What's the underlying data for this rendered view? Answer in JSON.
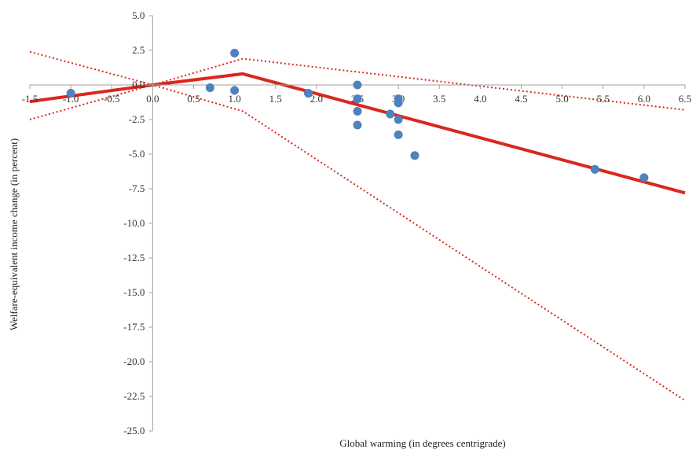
{
  "chart_data": {
    "type": "scatter",
    "xlabel": "Global warming (in degrees centrigrade)",
    "ylabel": "Welfare-equivalent income change (in percent)",
    "xlim": [
      -1.5,
      6.5
    ],
    "ylim": [
      -25.0,
      5.0
    ],
    "x_ticks": [
      "-1.5",
      "-1.0",
      "-0.5",
      "0.0",
      "0.5",
      "1.0",
      "1.5",
      "2.0",
      "2.5",
      "3.0",
      "3.5",
      "4.0",
      "4.5",
      "5.0",
      "5.5",
      "6.0",
      "6.5"
    ],
    "y_ticks": [
      "5.0",
      "2.5",
      "0.0",
      "-2.5",
      "-5.0",
      "-7.5",
      "-10.0",
      "-12.5",
      "-15.0",
      "-17.5",
      "-20.0",
      "-22.5",
      "-25.0"
    ],
    "grid": false,
    "legend": "none",
    "points": [
      {
        "x": -1.0,
        "y": -0.6
      },
      {
        "x": 0.7,
        "y": -0.2
      },
      {
        "x": 1.0,
        "y": 2.3
      },
      {
        "x": 1.0,
        "y": -0.4
      },
      {
        "x": 1.9,
        "y": -0.6
      },
      {
        "x": 2.5,
        "y": 0.0
      },
      {
        "x": 2.5,
        "y": -1.0
      },
      {
        "x": 2.5,
        "y": -1.9
      },
      {
        "x": 2.5,
        "y": -2.9
      },
      {
        "x": 2.9,
        "y": -2.1
      },
      {
        "x": 3.0,
        "y": -1.0
      },
      {
        "x": 3.0,
        "y": -1.3
      },
      {
        "x": 3.0,
        "y": -2.5
      },
      {
        "x": 3.0,
        "y": -3.6
      },
      {
        "x": 3.2,
        "y": -5.1
      },
      {
        "x": 5.4,
        "y": -6.1
      },
      {
        "x": 6.0,
        "y": -6.7
      }
    ],
    "fit_line": [
      [
        -1.5,
        -1.2
      ],
      [
        0.0,
        0.0
      ],
      [
        1.1,
        0.8
      ],
      [
        6.5,
        -7.8
      ]
    ],
    "confidence_bands": [
      [
        [
          -1.5,
          -2.5
        ],
        [
          0.0,
          0.0
        ],
        [
          1.1,
          1.9
        ],
        [
          6.5,
          -1.8
        ]
      ],
      [
        [
          -1.5,
          2.4
        ],
        [
          0.0,
          0.0
        ],
        [
          1.1,
          -1.9
        ],
        [
          6.5,
          -22.8
        ]
      ]
    ],
    "colors": {
      "points": "#4f81bd",
      "fit": "#d9281e",
      "bands": "#d9281e"
    }
  }
}
